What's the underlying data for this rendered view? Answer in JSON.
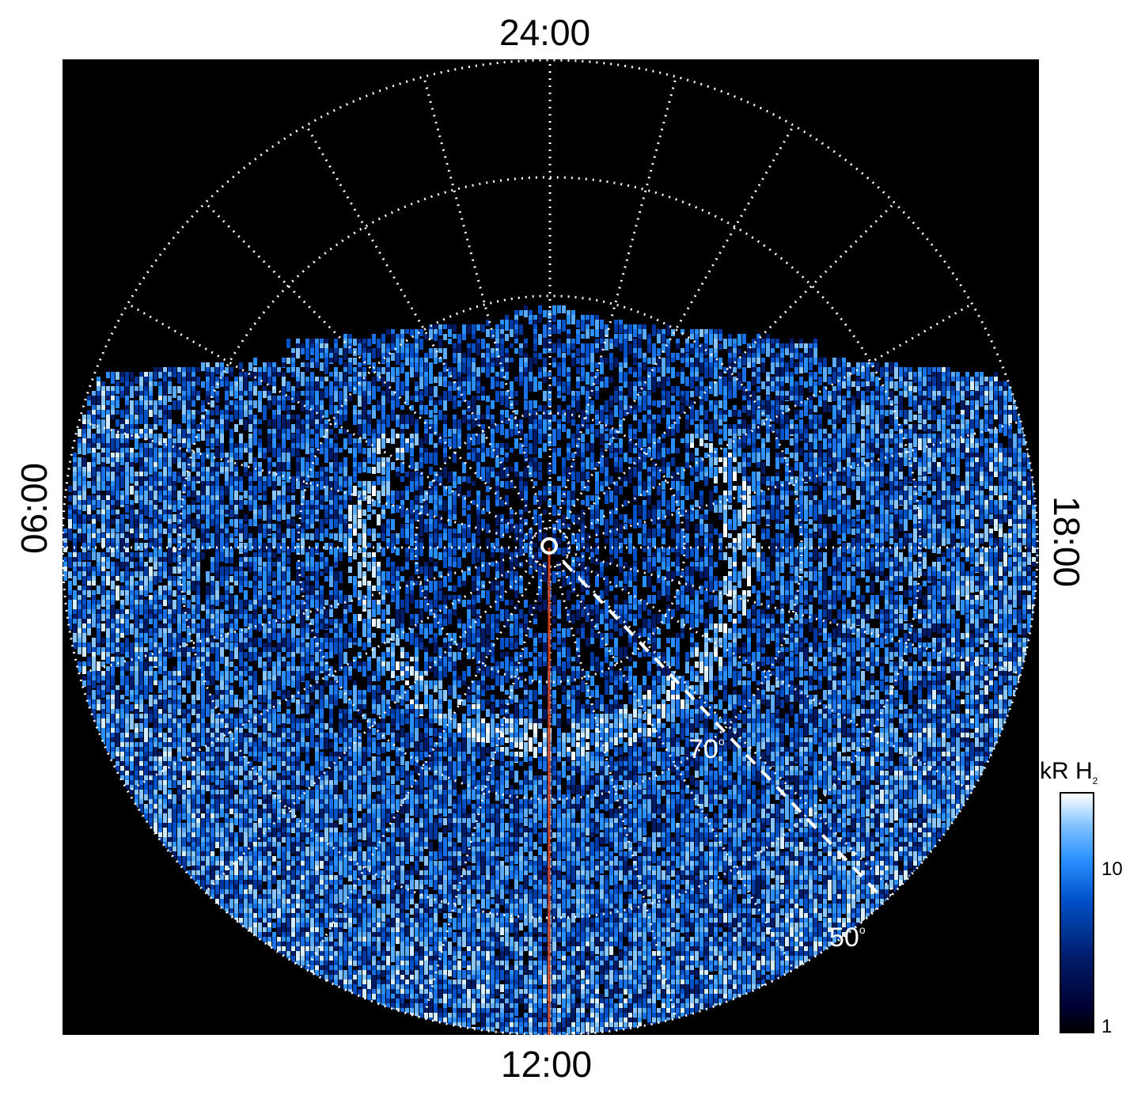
{
  "local_time_labels": {
    "top": "24:00",
    "bottom": "12:00",
    "left": "06:00",
    "right": "18:00"
  },
  "latitude_labels": {
    "inner": "70",
    "outer": "50",
    "degree_symbol": "o"
  },
  "colorbar": {
    "title_main": "kR H",
    "title_sub": "2",
    "ticks": [
      "10",
      "1"
    ],
    "scale": "log",
    "colors": [
      "#000000",
      "#001a66",
      "#0050c8",
      "#2a90ff",
      "#ffffff"
    ]
  },
  "colors": {
    "background": "#000000",
    "grid": "#ffffff",
    "meridian_line": "#d0401a",
    "page": "#ffffff"
  }
}
